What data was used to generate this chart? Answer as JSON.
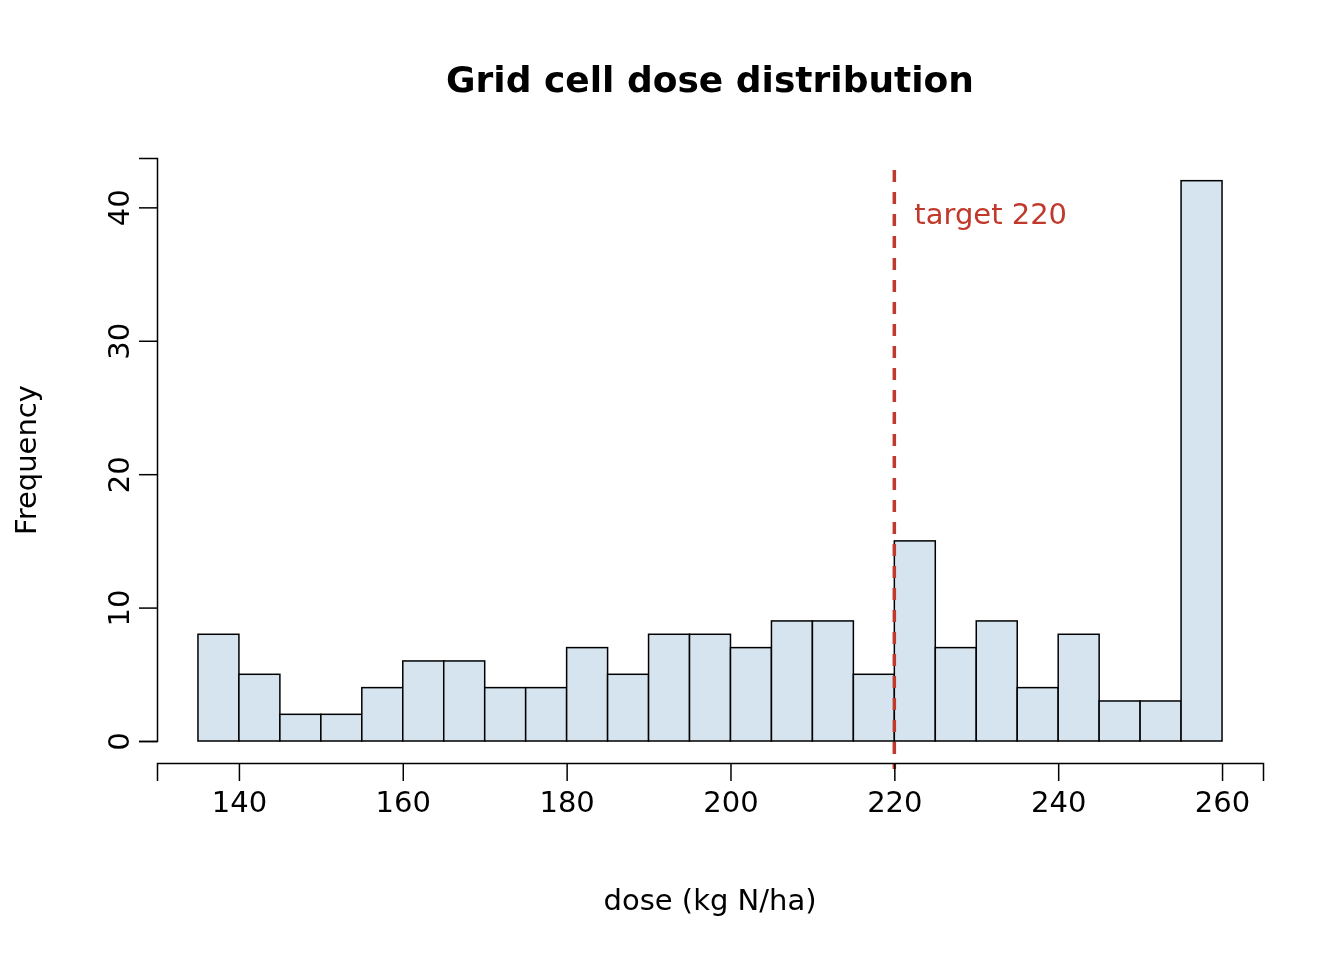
{
  "chart_data": {
    "type": "histogram",
    "title": "Grid cell dose distribution",
    "xlabel": "dose (kg N/ha)",
    "ylabel": "Frequency",
    "bins": [
      135,
      140,
      145,
      150,
      155,
      160,
      165,
      170,
      175,
      180,
      185,
      190,
      195,
      200,
      205,
      210,
      215,
      220,
      225,
      230,
      235,
      240,
      245,
      250,
      255,
      260
    ],
    "values": [
      8,
      5,
      2,
      2,
      4,
      6,
      6,
      4,
      4,
      7,
      5,
      8,
      8,
      7,
      9,
      9,
      5,
      15,
      7,
      9,
      4,
      8,
      3,
      3,
      42
    ],
    "color": "#d6e4f0",
    "xlim": [
      130,
      265
    ],
    "xticks": [
      140,
      160,
      180,
      200,
      220,
      240,
      260
    ],
    "ylim": [
      0,
      43.7
    ],
    "yticks": [
      0,
      10,
      20,
      30,
      40
    ],
    "ref_lines": [
      {
        "axis": "x",
        "value": 220,
        "label": "target 220",
        "color": "#c0392b",
        "line_style": "dashed"
      }
    ],
    "grid": false
  }
}
